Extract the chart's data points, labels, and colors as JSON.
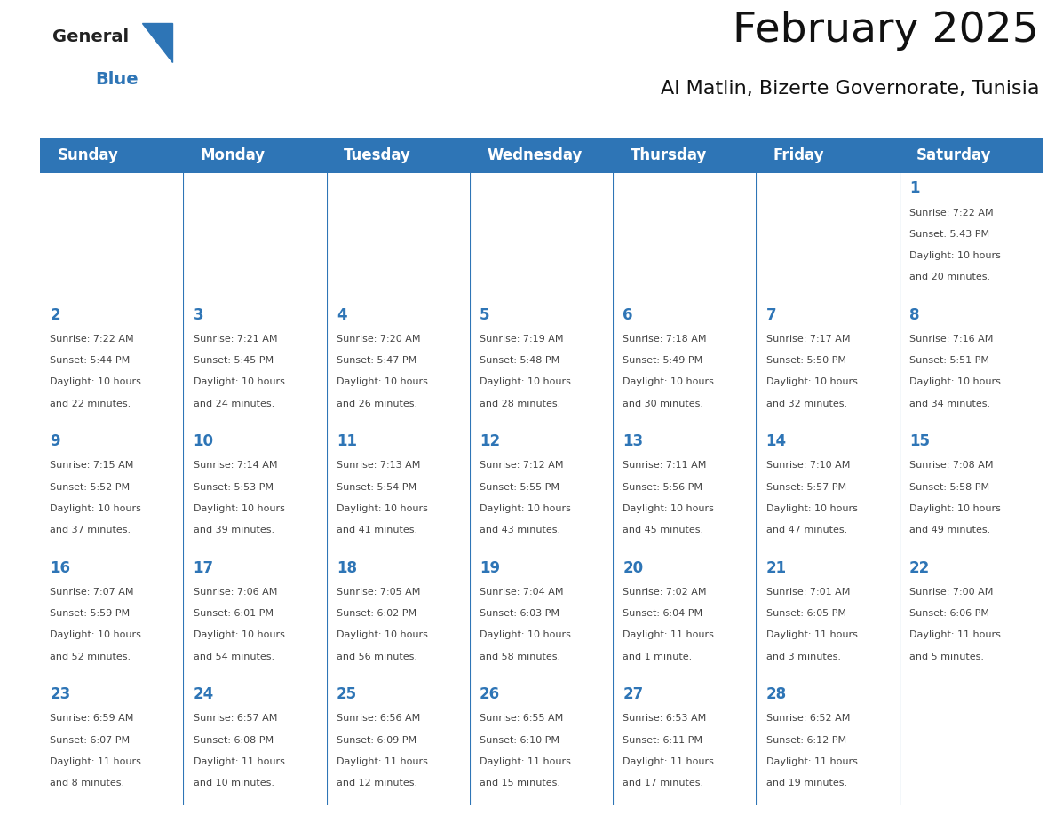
{
  "title": "February 2025",
  "subtitle": "Al Matlin, Bizerte Governorate, Tunisia",
  "header_bg": "#2E75B6",
  "header_text_color": "#FFFFFF",
  "header_font_size": 12,
  "title_font_size": 34,
  "subtitle_font_size": 16,
  "day_headers": [
    "Sunday",
    "Monday",
    "Tuesday",
    "Wednesday",
    "Thursday",
    "Friday",
    "Saturday"
  ],
  "cell_text_color": "#444444",
  "day_number_color": "#2E75B6",
  "grid_color": "#2E75B6",
  "background_color": "#FFFFFF",
  "logo_general_color": "#222222",
  "logo_blue_color": "#2E75B6",
  "weeks": [
    [
      {
        "day": null,
        "sunrise": null,
        "sunset": null,
        "daylight": null
      },
      {
        "day": null,
        "sunrise": null,
        "sunset": null,
        "daylight": null
      },
      {
        "day": null,
        "sunrise": null,
        "sunset": null,
        "daylight": null
      },
      {
        "day": null,
        "sunrise": null,
        "sunset": null,
        "daylight": null
      },
      {
        "day": null,
        "sunrise": null,
        "sunset": null,
        "daylight": null
      },
      {
        "day": null,
        "sunrise": null,
        "sunset": null,
        "daylight": null
      },
      {
        "day": 1,
        "sunrise": "7:22 AM",
        "sunset": "5:43 PM",
        "daylight": "10 hours\nand 20 minutes."
      }
    ],
    [
      {
        "day": 2,
        "sunrise": "7:22 AM",
        "sunset": "5:44 PM",
        "daylight": "10 hours\nand 22 minutes."
      },
      {
        "day": 3,
        "sunrise": "7:21 AM",
        "sunset": "5:45 PM",
        "daylight": "10 hours\nand 24 minutes."
      },
      {
        "day": 4,
        "sunrise": "7:20 AM",
        "sunset": "5:47 PM",
        "daylight": "10 hours\nand 26 minutes."
      },
      {
        "day": 5,
        "sunrise": "7:19 AM",
        "sunset": "5:48 PM",
        "daylight": "10 hours\nand 28 minutes."
      },
      {
        "day": 6,
        "sunrise": "7:18 AM",
        "sunset": "5:49 PM",
        "daylight": "10 hours\nand 30 minutes."
      },
      {
        "day": 7,
        "sunrise": "7:17 AM",
        "sunset": "5:50 PM",
        "daylight": "10 hours\nand 32 minutes."
      },
      {
        "day": 8,
        "sunrise": "7:16 AM",
        "sunset": "5:51 PM",
        "daylight": "10 hours\nand 34 minutes."
      }
    ],
    [
      {
        "day": 9,
        "sunrise": "7:15 AM",
        "sunset": "5:52 PM",
        "daylight": "10 hours\nand 37 minutes."
      },
      {
        "day": 10,
        "sunrise": "7:14 AM",
        "sunset": "5:53 PM",
        "daylight": "10 hours\nand 39 minutes."
      },
      {
        "day": 11,
        "sunrise": "7:13 AM",
        "sunset": "5:54 PM",
        "daylight": "10 hours\nand 41 minutes."
      },
      {
        "day": 12,
        "sunrise": "7:12 AM",
        "sunset": "5:55 PM",
        "daylight": "10 hours\nand 43 minutes."
      },
      {
        "day": 13,
        "sunrise": "7:11 AM",
        "sunset": "5:56 PM",
        "daylight": "10 hours\nand 45 minutes."
      },
      {
        "day": 14,
        "sunrise": "7:10 AM",
        "sunset": "5:57 PM",
        "daylight": "10 hours\nand 47 minutes."
      },
      {
        "day": 15,
        "sunrise": "7:08 AM",
        "sunset": "5:58 PM",
        "daylight": "10 hours\nand 49 minutes."
      }
    ],
    [
      {
        "day": 16,
        "sunrise": "7:07 AM",
        "sunset": "5:59 PM",
        "daylight": "10 hours\nand 52 minutes."
      },
      {
        "day": 17,
        "sunrise": "7:06 AM",
        "sunset": "6:01 PM",
        "daylight": "10 hours\nand 54 minutes."
      },
      {
        "day": 18,
        "sunrise": "7:05 AM",
        "sunset": "6:02 PM",
        "daylight": "10 hours\nand 56 minutes."
      },
      {
        "day": 19,
        "sunrise": "7:04 AM",
        "sunset": "6:03 PM",
        "daylight": "10 hours\nand 58 minutes."
      },
      {
        "day": 20,
        "sunrise": "7:02 AM",
        "sunset": "6:04 PM",
        "daylight": "11 hours\nand 1 minute."
      },
      {
        "day": 21,
        "sunrise": "7:01 AM",
        "sunset": "6:05 PM",
        "daylight": "11 hours\nand 3 minutes."
      },
      {
        "day": 22,
        "sunrise": "7:00 AM",
        "sunset": "6:06 PM",
        "daylight": "11 hours\nand 5 minutes."
      }
    ],
    [
      {
        "day": 23,
        "sunrise": "6:59 AM",
        "sunset": "6:07 PM",
        "daylight": "11 hours\nand 8 minutes."
      },
      {
        "day": 24,
        "sunrise": "6:57 AM",
        "sunset": "6:08 PM",
        "daylight": "11 hours\nand 10 minutes."
      },
      {
        "day": 25,
        "sunrise": "6:56 AM",
        "sunset": "6:09 PM",
        "daylight": "11 hours\nand 12 minutes."
      },
      {
        "day": 26,
        "sunrise": "6:55 AM",
        "sunset": "6:10 PM",
        "daylight": "11 hours\nand 15 minutes."
      },
      {
        "day": 27,
        "sunrise": "6:53 AM",
        "sunset": "6:11 PM",
        "daylight": "11 hours\nand 17 minutes."
      },
      {
        "day": 28,
        "sunrise": "6:52 AM",
        "sunset": "6:12 PM",
        "daylight": "11 hours\nand 19 minutes."
      },
      {
        "day": null,
        "sunrise": null,
        "sunset": null,
        "daylight": null
      }
    ]
  ]
}
